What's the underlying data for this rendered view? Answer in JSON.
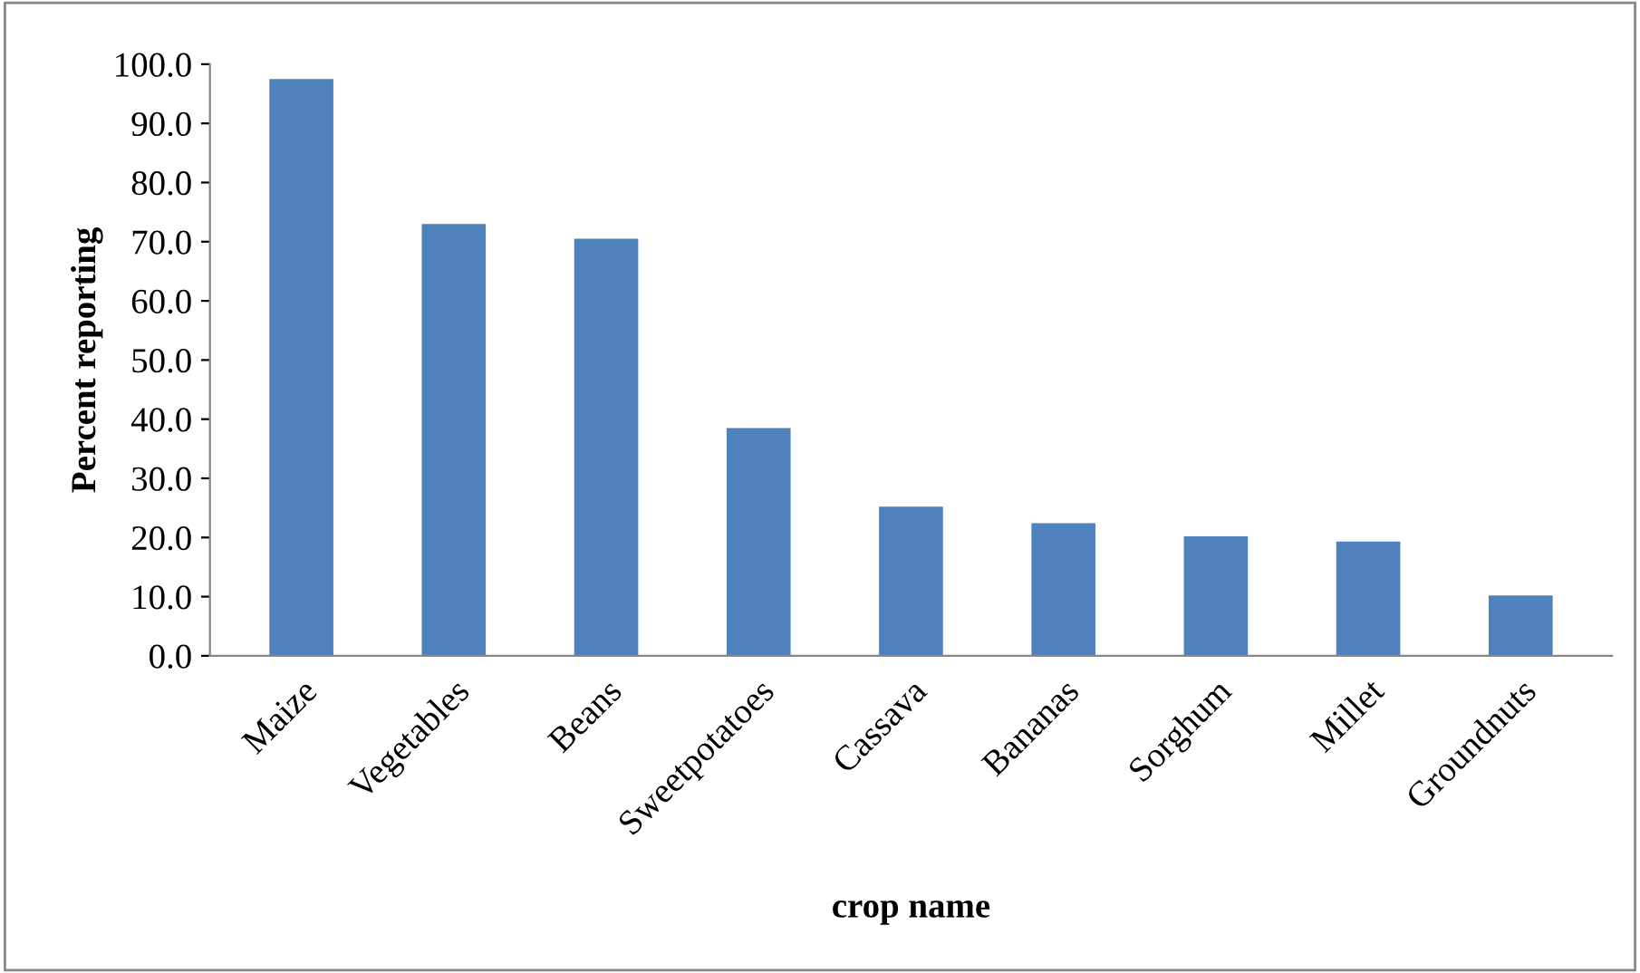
{
  "chart_data": {
    "type": "bar",
    "xlabel": "crop name",
    "ylabel": "Percent reporting",
    "categories": [
      "Maize",
      "Vegetables",
      "Beans",
      "Sweetpotatoes",
      "Cassava",
      "Bananas",
      "Sorghum",
      "Millet",
      "Groundnuts"
    ],
    "values": [
      97.5,
      73.0,
      70.5,
      38.5,
      25.2,
      22.4,
      20.2,
      19.3,
      10.2
    ],
    "color": "#4f81bd",
    "ylim": [
      0,
      100
    ],
    "yticks": [
      {
        "value": 0,
        "label": "0.0"
      },
      {
        "value": 10,
        "label": "10.0"
      },
      {
        "value": 20,
        "label": "20.0"
      },
      {
        "value": 30,
        "label": "30.0"
      },
      {
        "value": 40,
        "label": "40.0"
      },
      {
        "value": 50,
        "label": "50.0"
      },
      {
        "value": 60,
        "label": "60.0"
      },
      {
        "value": 70,
        "label": "70.0"
      },
      {
        "value": 80,
        "label": "80.0"
      },
      {
        "value": 90,
        "label": "90.0"
      },
      {
        "value": 100,
        "label": "100.0"
      }
    ],
    "grid": false,
    "legend": false
  }
}
